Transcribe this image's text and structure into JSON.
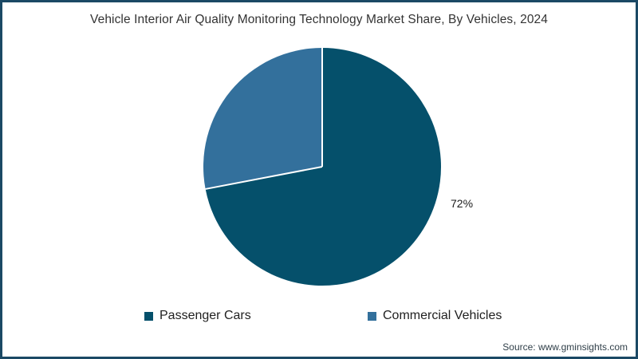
{
  "page": {
    "title": "Vehicle Interior Air Quality Monitoring Technology Market Share, By Vehicles, 2024",
    "source": "Source: www.gminsights.com"
  },
  "colors": {
    "frame_border": "#1b4965",
    "divider": "#ffffff",
    "title_text": "#333333",
    "passenger_cars": "#05506b",
    "commercial_vehicles": "#33709c"
  },
  "chart_data": {
    "type": "pie",
    "title": "Vehicle Interior Air Quality Monitoring Technology Market Share, By Vehicles, 2024",
    "slices": [
      {
        "label": "Passenger Cars",
        "value": 72,
        "color": "#05506b",
        "data_label": "72%"
      },
      {
        "label": "Commercial Vehicles",
        "value": 28,
        "color": "#33709c",
        "data_label": ""
      }
    ],
    "start_angle_deg": 0,
    "direction": "clockwise",
    "legend_position": "bottom",
    "shown_data_labels": [
      "72%"
    ]
  },
  "legend": {
    "items": [
      {
        "label": "Passenger Cars",
        "color": "#05506b"
      },
      {
        "label": "Commercial Vehicles",
        "color": "#33709c"
      }
    ]
  }
}
